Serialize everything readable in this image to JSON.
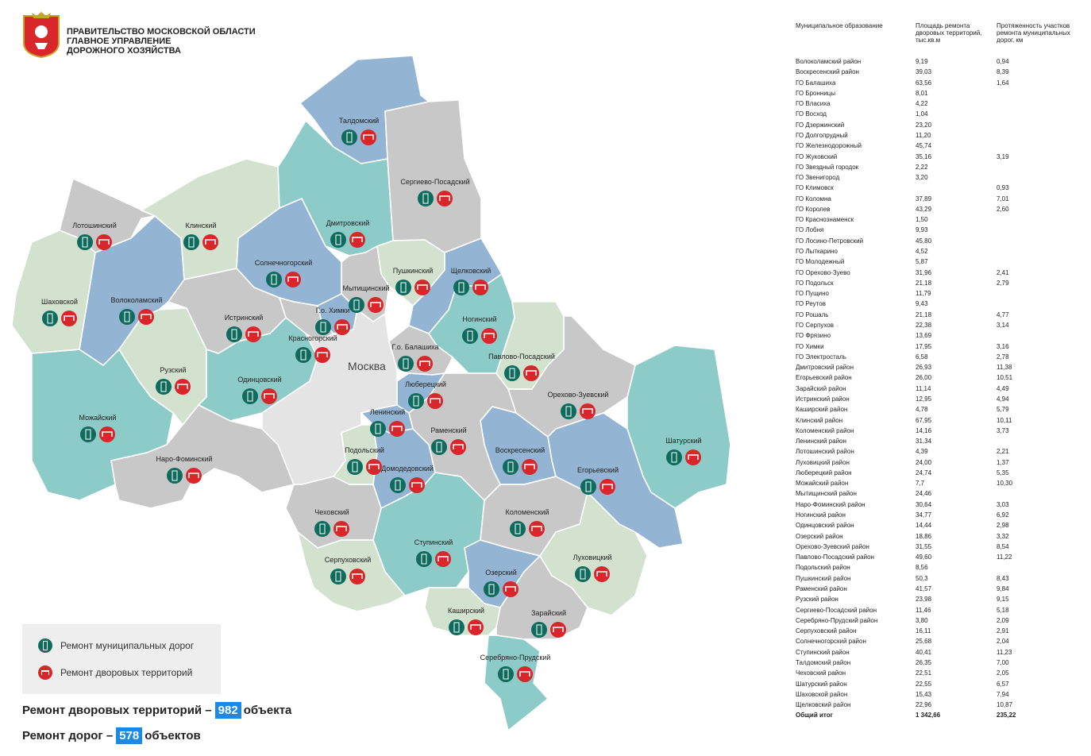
{
  "header": {
    "line1": "ПРАВИТЕЛЬСТВО МОСКОВСКОЙ ОБЛАСТИ",
    "line2": "ГЛАВНОЕ УПРАВЛЕНИЕ",
    "line3": "ДОРОЖНОГО ХОЗЯЙСТВА"
  },
  "colors": {
    "gray": "#c8c8c8",
    "blue": "#93b4d2",
    "teal": "#8ccbc8",
    "lightgreen": "#d3e2cf",
    "moscow": "#e4e4e4",
    "road_icon": "#0e6b5e",
    "yard_icon": "#d9262a",
    "highlight": "#1e88e5"
  },
  "map": {
    "moscow_label": "Москва",
    "regions": [
      {
        "label": "Талдомский"
      },
      {
        "label": "Сергиево-Посадский"
      },
      {
        "label": "Дмитровский"
      },
      {
        "label": "Клинский"
      },
      {
        "label": "Лотошинский"
      },
      {
        "label": "Волоколамский"
      },
      {
        "label": "Шаховской"
      },
      {
        "label": "Солнечногорский"
      },
      {
        "label": "Пушкинский"
      },
      {
        "label": "Щелковский"
      },
      {
        "label": "Мытищинский"
      },
      {
        "label": "Г.о. Химки"
      },
      {
        "label": "Истринский"
      },
      {
        "label": "Красногорский"
      },
      {
        "label": "Ногинский"
      },
      {
        "label": "Г.о. Балашиха"
      },
      {
        "label": "Павлово-Посадский"
      },
      {
        "label": "Рузский"
      },
      {
        "label": "Одинцовский"
      },
      {
        "label": "Люберецкий"
      },
      {
        "label": "Орехово-Зуевский"
      },
      {
        "label": "Ленинский"
      },
      {
        "label": "Можайский"
      },
      {
        "label": "Раменский"
      },
      {
        "label": "Воскресенский"
      },
      {
        "label": "Шатурский"
      },
      {
        "label": "Подольский"
      },
      {
        "label": "Наро-Фоминский"
      },
      {
        "label": "Домодедовский"
      },
      {
        "label": "Егорьевский"
      },
      {
        "label": "Чеховский"
      },
      {
        "label": "Коломенский"
      },
      {
        "label": "Ступинский"
      },
      {
        "label": "Серпуховский"
      },
      {
        "label": "Луховицкий"
      },
      {
        "label": "Озерский"
      },
      {
        "label": "Каширский"
      },
      {
        "label": "Зарайский"
      },
      {
        "label": "Серебряно-Прудский"
      }
    ]
  },
  "legend": {
    "roads": "Ремонт муниципальных дорог",
    "yards": "Ремонт дворовых территорий"
  },
  "totals": {
    "yards_label": "Ремонт дворовых территорий –",
    "yards_value": "982",
    "yards_unit": "объекта",
    "roads_label": "Ремонт дорог –",
    "roads_value": "578",
    "roads_unit": "объектов"
  },
  "table": {
    "headers": [
      "Муниципальное образование",
      "Площадь ремонта дворовых территорий, тыс.кв.м",
      "Протяженность участков ремонта муниципальных дорог, км"
    ],
    "rows": [
      [
        "Волоколамский район",
        "9,19",
        "0,94"
      ],
      [
        "Воскресенский район",
        "39,03",
        "8,39"
      ],
      [
        "ГО Балашиха",
        "63,56",
        "1,64"
      ],
      [
        "ГО Бронницы",
        "8,01",
        ""
      ],
      [
        "ГО Власиха",
        "4,22",
        ""
      ],
      [
        "ГО Восход",
        "1,04",
        ""
      ],
      [
        "ГО Дзержинский",
        "23,20",
        ""
      ],
      [
        "ГО Долгопрудный",
        "11,20",
        ""
      ],
      [
        "ГО Железнодорожный",
        "45,74",
        ""
      ],
      [
        "ГО Жуковский",
        "35,16",
        "3,19"
      ],
      [
        "ГО Звездный городок",
        "2,22",
        ""
      ],
      [
        "ГО Звенигород",
        "3,20",
        ""
      ],
      [
        "ГО Климовск",
        "",
        "0,93"
      ],
      [
        "ГО Коломна",
        "37,89",
        "7,01"
      ],
      [
        "ГО Королев",
        "43,29",
        "2,60"
      ],
      [
        "ГО Краснознаменск",
        "1,50",
        ""
      ],
      [
        "ГО Лобня",
        "9,93",
        ""
      ],
      [
        "ГО Лосино-Петровский",
        "45,80",
        ""
      ],
      [
        "ГО Лыткарино",
        "4,52",
        ""
      ],
      [
        "ГО Молодежный",
        "5,87",
        ""
      ],
      [
        "ГО Орехово-Зуево",
        "31,96",
        "2,41"
      ],
      [
        "ГО Подольск",
        "21,18",
        "2,79"
      ],
      [
        "ГО Пущино",
        "11,79",
        ""
      ],
      [
        "ГО Реутов",
        "9,43",
        ""
      ],
      [
        "ГО Рошаль",
        "21,18",
        "4,77"
      ],
      [
        "ГО Серпухов",
        "22,38",
        "3,14"
      ],
      [
        "ГО Фрязино",
        "13,69",
        ""
      ],
      [
        "ГО Химки",
        "17,95",
        "3,16"
      ],
      [
        "ГО Электросталь",
        "6,58",
        "2,78"
      ],
      [
        "Дмитровский район",
        "26,93",
        "11,38"
      ],
      [
        "Егорьевский район",
        "26,00",
        "10,51"
      ],
      [
        "Зарайский район",
        "11,14",
        "4,49"
      ],
      [
        "Истринский район",
        "12,95",
        "4,94"
      ],
      [
        "Каширский район",
        "4,78",
        "5,79"
      ],
      [
        "Клинский район",
        "67,95",
        "10,11"
      ],
      [
        "Коломенский район",
        "14,16",
        "3,73"
      ],
      [
        "Ленинский район",
        "31,34",
        ""
      ],
      [
        "Лотошинский район",
        "4,39",
        "2,21"
      ],
      [
        "Луховицкий район",
        "24,00",
        "1,37"
      ],
      [
        "Люберецкий район",
        "24,74",
        "5,35"
      ],
      [
        "Можайский район",
        "7,7",
        "10,30"
      ],
      [
        "Мытищинский район",
        "24,46",
        ""
      ],
      [
        "Наро-Фоминский район",
        "30,64",
        "3,03"
      ],
      [
        "Ногинский район",
        "34,77",
        "6,92"
      ],
      [
        "Одинцовский район",
        "14,44",
        "2,98"
      ],
      [
        "Озерский район",
        "18,86",
        "3,32"
      ],
      [
        "Орехово-Зуевский район",
        "31,55",
        "8,54"
      ],
      [
        "Павлово-Посадский район",
        "49,60",
        "11,22"
      ],
      [
        "Подольский район",
        "8,56",
        ""
      ],
      [
        "Пушкинский район",
        "50,3",
        "8,43"
      ],
      [
        "Раменский район",
        "41,57",
        "9,84"
      ],
      [
        "Рузский район",
        "23,98",
        "9,15"
      ],
      [
        "Сергиево-Посадский район",
        "11,46",
        "5,18"
      ],
      [
        "Серебряно-Прудский район",
        "3,80",
        "2,09"
      ],
      [
        "Серпуховский район",
        "16,11",
        "2,91"
      ],
      [
        "Солнечногорский район",
        "25,68",
        "2,04"
      ],
      [
        "Ступинский район",
        "40,41",
        "11,23"
      ],
      [
        "Талдомский район",
        "26,35",
        "7,00"
      ],
      [
        "Чеховский район",
        "22,51",
        "2,05"
      ],
      [
        "Шатурский район",
        "22,55",
        "6,57"
      ],
      [
        "Шаховской район",
        "15,43",
        "7,94"
      ],
      [
        "Щелковский район",
        "22,96",
        "10,87"
      ]
    ],
    "total": [
      "Общий итог",
      "1 342,66",
      "235,22"
    ]
  }
}
